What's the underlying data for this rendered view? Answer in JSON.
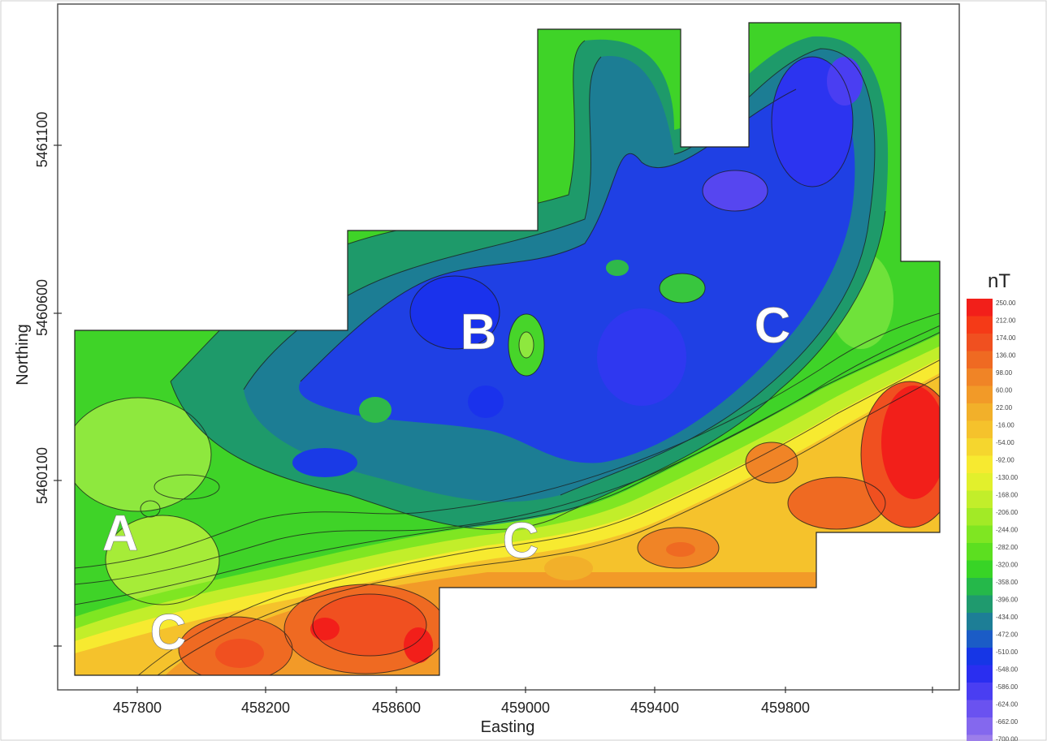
{
  "axes": {
    "x_title": "Easting",
    "y_title": "Northing",
    "x_ticks": [
      "457800",
      "458200",
      "458600",
      "459000",
      "459400",
      "459800"
    ],
    "y_ticks": [
      "5461100",
      "5460600",
      "5460100"
    ]
  },
  "anomalies": [
    {
      "label": "A"
    },
    {
      "label": "B"
    },
    {
      "label": "C"
    },
    {
      "label": "C"
    },
    {
      "label": "C"
    }
  ],
  "legend": {
    "title": "nT",
    "values": [
      "250.00",
      "212.00",
      "174.00",
      "136.00",
      "98.00",
      "60.00",
      "22.00",
      "-16.00",
      "-54.00",
      "-92.00",
      "-130.00",
      "-168.00",
      "-206.00",
      "-244.00",
      "-282.00",
      "-320.00",
      "-358.00",
      "-396.00",
      "-434.00",
      "-472.00",
      "-510.00",
      "-548.00",
      "-586.00",
      "-624.00",
      "-662.00",
      "-700.00"
    ],
    "colors": [
      "#f21f1a",
      "#f53a17",
      "#f05020",
      "#ef6a22",
      "#f08426",
      "#f29a28",
      "#f2b02a",
      "#f5c22c",
      "#f5d62e",
      "#f7ea30",
      "#e2f02c",
      "#c2ee2a",
      "#a2ea26",
      "#7fe622",
      "#5cdf20",
      "#38d426",
      "#25b84a",
      "#1f9a6e",
      "#1d7e96",
      "#1b5cc6",
      "#1636e6",
      "#2a2ef0",
      "#4a3ef2",
      "#6a52f0",
      "#8468ee",
      "#9c7eea"
    ]
  }
}
